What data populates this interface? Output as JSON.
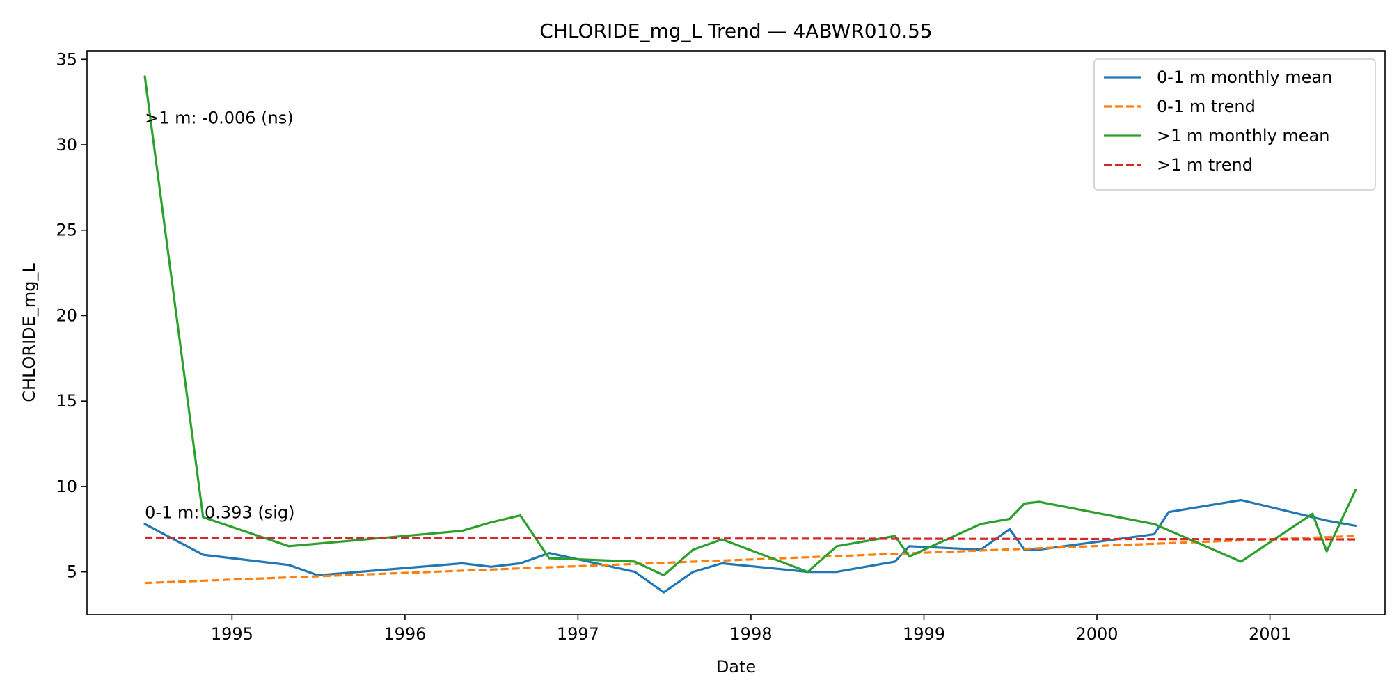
{
  "chart_data": {
    "type": "line",
    "title": "CHLORIDE_mg_L Trend — 4ABWR010.55",
    "xlabel": "Date",
    "ylabel": "CHLORIDE_mg_L",
    "xlim": [
      "1994-03-01",
      "2001-09-01"
    ],
    "ylim": [
      2.5,
      35.5
    ],
    "x_ticks": [
      "1995",
      "1996",
      "1997",
      "1998",
      "1999",
      "2000",
      "2001"
    ],
    "y_ticks": [
      5,
      10,
      15,
      20,
      25,
      30,
      35
    ],
    "grid": false,
    "legend_position": "top-right",
    "series": [
      {
        "name": "0-1 m monthly mean",
        "color": "#1f77b4",
        "style": "solid",
        "points": [
          [
            "1994-07-01",
            7.8
          ],
          [
            "1994-11-01",
            6.0
          ],
          [
            "1995-05-01",
            5.4
          ],
          [
            "1995-07-01",
            4.8
          ],
          [
            "1996-05-01",
            5.5
          ],
          [
            "1996-07-01",
            5.3
          ],
          [
            "1996-09-01",
            5.5
          ],
          [
            "1996-11-01",
            6.1
          ],
          [
            "1997-05-01",
            5.0
          ],
          [
            "1997-07-01",
            3.8
          ],
          [
            "1997-09-01",
            5.0
          ],
          [
            "1997-11-01",
            5.5
          ],
          [
            "1998-05-01",
            5.0
          ],
          [
            "1998-07-01",
            5.0
          ],
          [
            "1998-11-01",
            5.6
          ],
          [
            "1998-12-01",
            6.5
          ],
          [
            "1999-05-01",
            6.3
          ],
          [
            "1999-07-01",
            7.5
          ],
          [
            "1999-08-01",
            6.3
          ],
          [
            "1999-09-01",
            6.3
          ],
          [
            "2000-05-01",
            7.2
          ],
          [
            "2000-06-01",
            8.5
          ],
          [
            "2000-11-01",
            9.2
          ],
          [
            "2001-05-01",
            8.0
          ],
          [
            "2001-07-01",
            7.7
          ]
        ]
      },
      {
        "name": "0-1 m trend",
        "color": "#ff7f0e",
        "style": "dashed",
        "points": [
          [
            "1994-07-01",
            4.35
          ],
          [
            "2001-07-01",
            7.1
          ]
        ]
      },
      {
        "name": ">1 m monthly mean",
        "color": "#2ca02c",
        "style": "solid",
        "points": [
          [
            "1994-07-01",
            34.0
          ],
          [
            "1994-11-01",
            8.2
          ],
          [
            "1995-05-01",
            6.5
          ],
          [
            "1996-05-01",
            7.4
          ],
          [
            "1996-07-01",
            7.9
          ],
          [
            "1996-09-01",
            8.3
          ],
          [
            "1996-11-01",
            5.8
          ],
          [
            "1997-05-01",
            5.6
          ],
          [
            "1997-07-01",
            4.8
          ],
          [
            "1997-09-01",
            6.3
          ],
          [
            "1997-11-01",
            6.9
          ],
          [
            "1998-05-01",
            5.0
          ],
          [
            "1998-07-01",
            6.5
          ],
          [
            "1998-11-01",
            7.1
          ],
          [
            "1998-12-01",
            5.9
          ],
          [
            "1999-05-01",
            7.8
          ],
          [
            "1999-07-01",
            8.1
          ],
          [
            "1999-08-01",
            9.0
          ],
          [
            "1999-09-01",
            9.1
          ],
          [
            "2000-05-01",
            7.8
          ],
          [
            "2000-11-01",
            5.6
          ],
          [
            "2001-04-01",
            8.4
          ],
          [
            "2001-05-01",
            6.2
          ],
          [
            "2001-07-01",
            9.8
          ]
        ]
      },
      {
        "name": ">1 m trend",
        "color": "#d62728",
        "style": "dashed",
        "points": [
          [
            "1994-07-01",
            7.0
          ],
          [
            "2001-07-01",
            6.9
          ]
        ]
      }
    ],
    "annotations": [
      {
        "text": ">1 m: -0.006 (ns)",
        "x": "1994-07-01",
        "y": 31.6
      },
      {
        "text": "0-1 m: 0.393 (sig)",
        "x": "1994-07-01",
        "y": 8.5
      }
    ]
  }
}
